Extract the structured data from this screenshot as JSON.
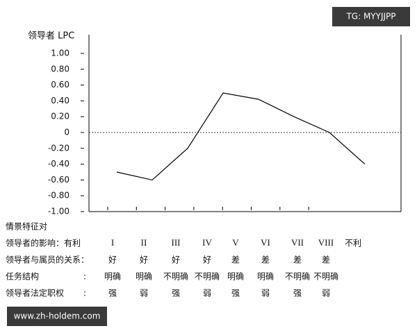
{
  "chart_data": {
    "type": "line",
    "y_label": "领导者 LPC",
    "categories": [
      "I",
      "II",
      "III",
      "IV",
      "V",
      "VI",
      "VII",
      "VIII"
    ],
    "values": [
      -0.5,
      -0.6,
      -0.2,
      0.5,
      0.42,
      0.2,
      0,
      -0.4
    ],
    "color": "#000000",
    "ylim": [
      -1,
      1
    ],
    "yticks": [
      {
        "value": 1,
        "label": "1.00"
      },
      {
        "value": 0.8,
        "label": "0.80"
      },
      {
        "value": 0.6,
        "label": "0.60"
      },
      {
        "value": 0.4,
        "label": "0.40"
      },
      {
        "value": 0.2,
        "label": "0.20"
      },
      0,
      {
        "value": -0.2,
        "label": "-0.20"
      },
      {
        "value": -0.4,
        "label": "-0.40"
      },
      {
        "value": -0.6,
        "label": "-0.60"
      },
      {
        "value": -0.8,
        "label": "-0.80"
      },
      {
        "value": -1,
        "label": "-1.00"
      }
    ],
    "zero_line": true
  },
  "table": {
    "title": "情景特征对",
    "rows": [
      {
        "label": "领导者的影响：有利",
        "cells": [
          "I",
          "II",
          "III",
          "IV",
          "V",
          "VI",
          "VII",
          "VIII"
        ],
        "end": "不利"
      },
      {
        "label": "领导者与属员的关系：",
        "cells": [
          "好",
          "好",
          "好",
          "好",
          "差",
          "差",
          "差",
          "差"
        ]
      },
      {
        "label": "任务结构",
        "sep": ":",
        "cells": [
          "明确",
          "明确",
          "不明确",
          "不明确",
          "明确",
          "明确",
          "不明确",
          "不明确"
        ]
      },
      {
        "label": "领导者法定职权",
        "sep": ":",
        "cells": [
          "强",
          "弱",
          "强",
          "弱",
          "强",
          "弱",
          "强",
          "弱"
        ]
      }
    ]
  },
  "watermarks": {
    "top": "TG: MYYJJPP",
    "bottom": "www.zh-holdem.com"
  }
}
